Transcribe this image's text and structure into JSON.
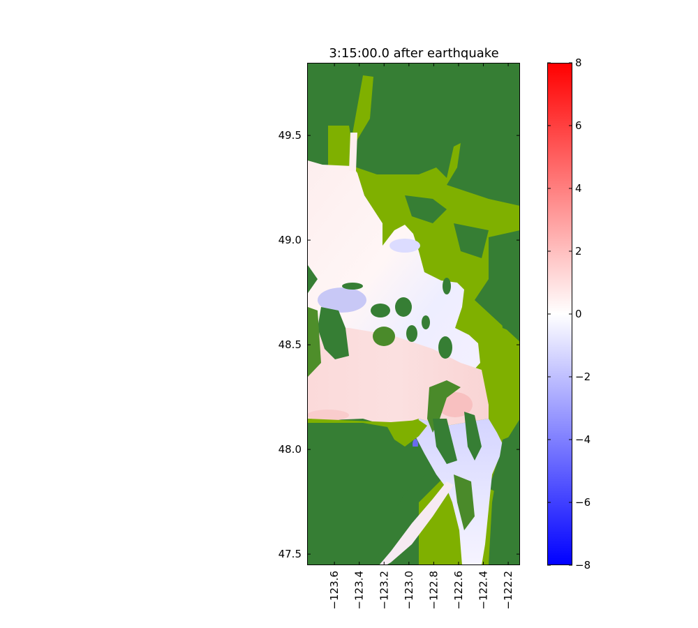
{
  "chart_data": {
    "type": "heatmap",
    "title": "3:15:00.0 after earthquake",
    "xlabel": "",
    "ylabel": "",
    "xlim": [
      -123.82,
      -122.105
    ],
    "ylim": [
      47.447,
      49.847
    ],
    "xticks": [
      -123.6,
      -123.4,
      -123.2,
      -123.0,
      -122.8,
      -122.6,
      -122.4,
      -122.2
    ],
    "xtick_labels": [
      "−123.6",
      "−123.4",
      "−123.2",
      "−123.0",
      "−122.8",
      "−122.6",
      "−122.4",
      "−122.2"
    ],
    "yticks": [
      49.5,
      49.0,
      48.5,
      48.0,
      47.5
    ],
    "ytick_labels": [
      "49.5",
      "49.0",
      "48.5",
      "48.0",
      "47.5"
    ],
    "colorbar": {
      "colormap": "bwr",
      "clim": [
        -8,
        8
      ],
      "ticks": [
        8,
        6,
        4,
        2,
        0,
        -2,
        -4,
        -6,
        -8
      ],
      "tick_labels": [
        "8",
        "6",
        "4",
        "2",
        "0",
        "−2",
        "−4",
        "−6",
        "−8"
      ]
    },
    "grid": false,
    "colors": {
      "land_dark": "#367e34",
      "land_light": "#7fb000",
      "water_positive": "#f9c4c4",
      "water_zero": "#ffffff",
      "water_negative": "#c8c8ff"
    }
  }
}
